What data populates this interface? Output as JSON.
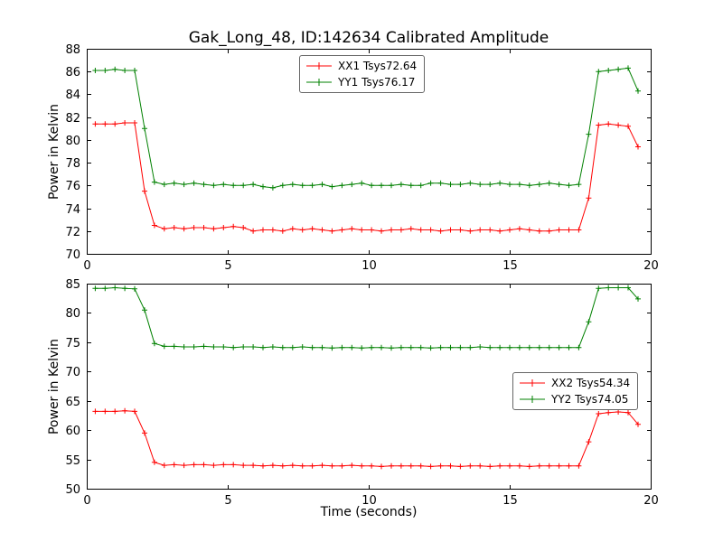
{
  "title": "Gak_Long_48, ID:142634 Calibrated Amplitude",
  "xlabel": "Time (seconds)",
  "chart_data": [
    {
      "type": "line",
      "ylabel": "Power in Kelvin",
      "xlim": [
        0,
        20
      ],
      "ylim": [
        70,
        88
      ],
      "xticks": [
        0,
        5,
        10,
        15,
        20
      ],
      "yticks": [
        70,
        72,
        74,
        76,
        78,
        80,
        82,
        84,
        86,
        88
      ],
      "grid": false,
      "legend_position": "top-center",
      "marker": "plus",
      "x": [
        0.3,
        0.65,
        1.0,
        1.35,
        1.7,
        2.05,
        2.4,
        2.75,
        3.1,
        3.45,
        3.8,
        4.15,
        4.5,
        4.85,
        5.2,
        5.55,
        5.9,
        6.25,
        6.6,
        6.95,
        7.3,
        7.65,
        8.0,
        8.35,
        8.7,
        9.05,
        9.4,
        9.75,
        10.1,
        10.45,
        10.8,
        11.15,
        11.5,
        11.85,
        12.2,
        12.55,
        12.9,
        13.25,
        13.6,
        13.95,
        14.3,
        14.65,
        15.0,
        15.35,
        15.7,
        16.05,
        16.4,
        16.75,
        17.1,
        17.45,
        17.8,
        18.15,
        18.5,
        18.85,
        19.2,
        19.55
      ],
      "series": [
        {
          "name": "XX1 Tsys72.64",
          "color": "#ff0000",
          "values": [
            81.4,
            81.4,
            81.4,
            81.5,
            81.5,
            75.5,
            72.5,
            72.2,
            72.3,
            72.2,
            72.3,
            72.3,
            72.2,
            72.3,
            72.4,
            72.3,
            72.0,
            72.1,
            72.1,
            72.0,
            72.2,
            72.1,
            72.2,
            72.1,
            72.0,
            72.1,
            72.2,
            72.1,
            72.1,
            72.0,
            72.1,
            72.1,
            72.2,
            72.1,
            72.1,
            72.0,
            72.1,
            72.1,
            72.0,
            72.1,
            72.1,
            72.0,
            72.1,
            72.2,
            72.1,
            72.0,
            72.0,
            72.1,
            72.1,
            72.1,
            74.9,
            81.3,
            81.4,
            81.3,
            81.2,
            79.4
          ]
        },
        {
          "name": "YY1 Tsys76.17",
          "color": "#008000",
          "values": [
            86.1,
            86.1,
            86.2,
            86.1,
            86.1,
            81.0,
            76.3,
            76.1,
            76.2,
            76.1,
            76.2,
            76.1,
            76.0,
            76.1,
            76.0,
            76.0,
            76.1,
            75.9,
            75.8,
            76.0,
            76.1,
            76.0,
            76.0,
            76.1,
            75.9,
            76.0,
            76.1,
            76.2,
            76.0,
            76.0,
            76.0,
            76.1,
            76.0,
            76.0,
            76.2,
            76.2,
            76.1,
            76.1,
            76.2,
            76.1,
            76.1,
            76.2,
            76.1,
            76.1,
            76.0,
            76.1,
            76.2,
            76.1,
            76.0,
            76.1,
            80.5,
            86.0,
            86.1,
            86.2,
            86.3,
            84.3
          ]
        }
      ]
    },
    {
      "type": "line",
      "ylabel": "Power in Kelvin",
      "xlim": [
        0,
        20
      ],
      "ylim": [
        50,
        85
      ],
      "xticks": [
        0,
        5,
        10,
        15,
        20
      ],
      "yticks": [
        50,
        55,
        60,
        65,
        70,
        75,
        80,
        85
      ],
      "grid": false,
      "legend_position": "middle-right",
      "marker": "plus",
      "x": [
        0.3,
        0.65,
        1.0,
        1.35,
        1.7,
        2.05,
        2.4,
        2.75,
        3.1,
        3.45,
        3.8,
        4.15,
        4.5,
        4.85,
        5.2,
        5.55,
        5.9,
        6.25,
        6.6,
        6.95,
        7.3,
        7.65,
        8.0,
        8.35,
        8.7,
        9.05,
        9.4,
        9.75,
        10.1,
        10.45,
        10.8,
        11.15,
        11.5,
        11.85,
        12.2,
        12.55,
        12.9,
        13.25,
        13.6,
        13.95,
        14.3,
        14.65,
        15.0,
        15.35,
        15.7,
        16.05,
        16.4,
        16.75,
        17.1,
        17.45,
        17.8,
        18.15,
        18.5,
        18.85,
        19.2,
        19.55
      ],
      "series": [
        {
          "name": "XX2 Tsys54.34",
          "color": "#ff0000",
          "values": [
            63.2,
            63.2,
            63.2,
            63.3,
            63.2,
            59.5,
            54.5,
            54.0,
            54.1,
            54.0,
            54.1,
            54.1,
            54.0,
            54.1,
            54.1,
            54.0,
            54.0,
            53.9,
            54.0,
            53.9,
            54.0,
            53.9,
            53.9,
            54.0,
            53.9,
            53.9,
            54.0,
            53.9,
            53.9,
            53.8,
            53.9,
            53.9,
            53.9,
            53.9,
            53.8,
            53.9,
            53.9,
            53.8,
            53.9,
            53.9,
            53.8,
            53.9,
            53.9,
            53.9,
            53.8,
            53.9,
            53.9,
            53.9,
            53.9,
            53.9,
            58.0,
            62.8,
            63.0,
            63.1,
            63.0,
            61.0
          ]
        },
        {
          "name": "YY2 Tsys74.05",
          "color": "#008000",
          "values": [
            84.2,
            84.2,
            84.3,
            84.2,
            84.1,
            80.5,
            74.8,
            74.3,
            74.3,
            74.2,
            74.2,
            74.3,
            74.2,
            74.2,
            74.1,
            74.2,
            74.2,
            74.1,
            74.2,
            74.1,
            74.1,
            74.2,
            74.1,
            74.1,
            74.0,
            74.1,
            74.1,
            74.0,
            74.1,
            74.1,
            74.0,
            74.1,
            74.1,
            74.1,
            74.0,
            74.1,
            74.1,
            74.1,
            74.1,
            74.2,
            74.1,
            74.1,
            74.1,
            74.1,
            74.1,
            74.1,
            74.1,
            74.1,
            74.1,
            74.1,
            78.5,
            84.2,
            84.3,
            84.3,
            84.3,
            82.4
          ]
        }
      ]
    }
  ]
}
